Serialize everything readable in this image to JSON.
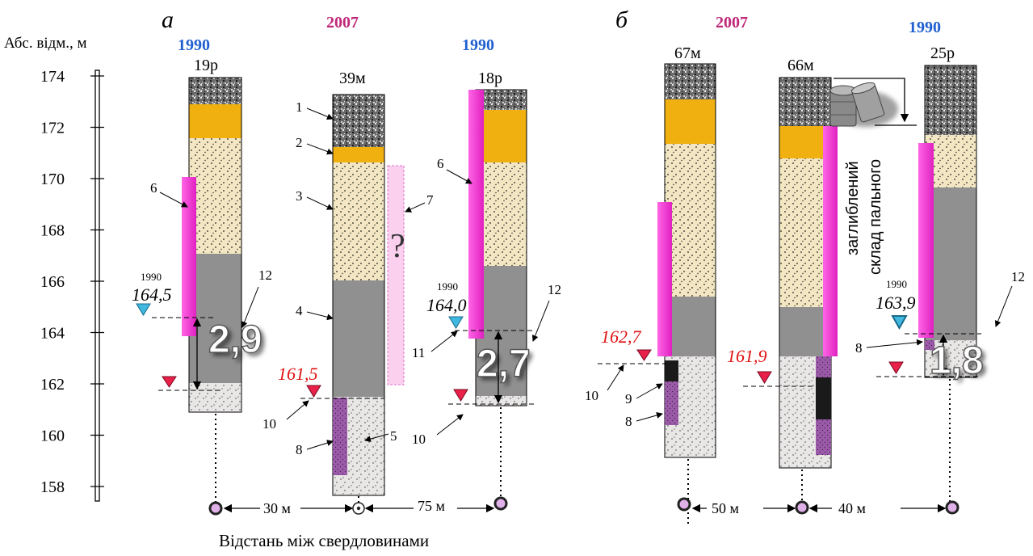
{
  "axis": {
    "label": "Абс. відм., м",
    "ticks": [
      "174",
      "172",
      "170",
      "168",
      "166",
      "164",
      "162",
      "160",
      "158"
    ]
  },
  "panels": [
    {
      "letter": "а",
      "years": [
        "1990",
        "2007",
        "1990"
      ]
    },
    {
      "letter": "б",
      "years": [
        "2007",
        "1990"
      ]
    }
  ],
  "wells": [
    {
      "name": "19р",
      "year": "1990",
      "water_1990_label": "1990",
      "water_1990": "164,5",
      "delta": "2,9"
    },
    {
      "name": "39м",
      "year": "2007",
      "water_2007": "161,5"
    },
    {
      "name": "18р",
      "year": "1990",
      "water_1990_label": "1990",
      "water_1990": "164,0",
      "delta": "2,7"
    },
    {
      "name": "67м",
      "year": "2007",
      "water_2007": "162,7"
    },
    {
      "name": "66м",
      "water_2007": "161,9"
    },
    {
      "name": "25р",
      "year": "1990",
      "water_1990_label": "1990",
      "water_1990": "163,9",
      "delta": "1,8"
    }
  ],
  "annotations": {
    "question": "?",
    "storage_line1": "заглиблений",
    "storage_line2": "склад пального",
    "numbers": [
      "1",
      "2",
      "3",
      "4",
      "5",
      "6",
      "7",
      "8",
      "9",
      "10",
      "11",
      "12"
    ]
  },
  "distances": {
    "a1": "30 м",
    "a2": "75 м",
    "b1": "50 м",
    "b2": "40 м",
    "caption": "Відстань між свердловинами"
  },
  "colors": {
    "year_1990": "#1f5fd0",
    "year_2007": "#c0287a",
    "water_2007_label": "#e01010",
    "sand": "#f3e7c3",
    "clay": "#909090",
    "loam": "#f0b010",
    "fill_soil": "#6a6a6a",
    "contamination": "#ff44dd",
    "contamination_low": "#9a5aa8",
    "tri_blue": "#40b8e0",
    "tri_red": "#e8204a",
    "well_marker": "#e0b0e8"
  }
}
